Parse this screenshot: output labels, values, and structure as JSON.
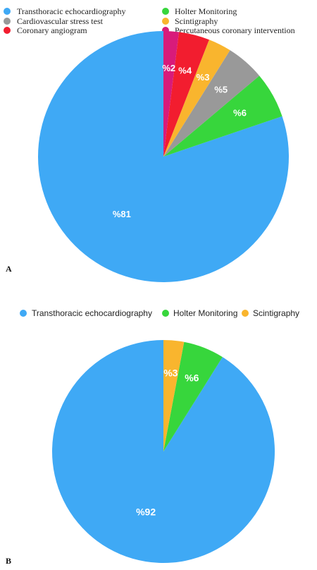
{
  "chart_data": [
    {
      "type": "pie",
      "panel_label": "A",
      "title": "",
      "legend_position": "top",
      "slices": [
        {
          "name": "Transthoracic echocardiography",
          "value": 81,
          "label": "%81",
          "color": "#3fa9f5"
        },
        {
          "name": "Holter Monitoring",
          "value": 6,
          "label": "%6",
          "color": "#37d63c"
        },
        {
          "name": "Cardiovascular stress test",
          "value": 5,
          "label": "%5",
          "color": "#999999"
        },
        {
          "name": "Scintigraphy",
          "value": 3,
          "label": "%3",
          "color": "#f9b52e"
        },
        {
          "name": "Coronary angiogram",
          "value": 4,
          "label": "%4",
          "color": "#f21d2f"
        },
        {
          "name": "Percutaneous coronary intervention",
          "value": 2,
          "label": "%2",
          "color": "#d81b7a"
        }
      ],
      "legend_order": [
        "Transthoracic echocardiography",
        "Holter Monitoring",
        "Cardiovascular stress test",
        "Scintigraphy",
        "Coronary angiogram",
        "Percutaneous coronary intervention"
      ]
    },
    {
      "type": "pie",
      "panel_label": "B",
      "title": "",
      "legend_position": "top",
      "slices": [
        {
          "name": "Transthoracic echocardiography",
          "value": 92,
          "label": "%92",
          "color": "#3fa9f5"
        },
        {
          "name": "Holter Monitoring",
          "value": 6,
          "label": "%6",
          "color": "#37d63c"
        },
        {
          "name": "Scintigraphy",
          "value": 3,
          "label": "%3",
          "color": "#f9b52e"
        }
      ],
      "legend_order": [
        "Transthoracic echocardiography",
        "Holter Monitoring",
        "Scintigraphy"
      ]
    }
  ]
}
